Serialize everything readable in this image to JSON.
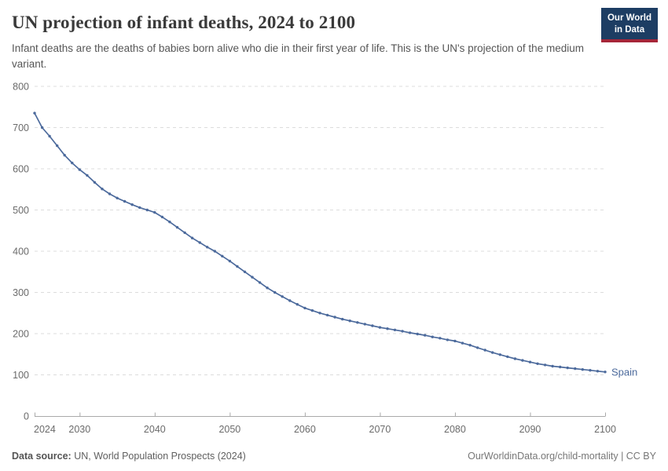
{
  "header": {
    "title": "UN projection of infant deaths, 2024 to 2100",
    "subtitle": "Infant deaths are the deaths of babies born alive who die in their first year of life. This is the UN's projection of the medium variant.",
    "logo": {
      "line1": "Our World",
      "line2": "in Data"
    }
  },
  "footer": {
    "source_label": "Data source:",
    "source_text": " UN, World Population Prospects (2024)",
    "credit": "OurWorldinData.org/child-mortality | CC BY"
  },
  "colors": {
    "series": "#4C6A9C",
    "grid": "#dcdcdc",
    "axis": "#a9a9a9",
    "logo_bg": "#1d3d63",
    "logo_stripe": "#a52639"
  },
  "chart_data": {
    "type": "line",
    "title": "UN projection of infant deaths, 2024 to 2100",
    "xlabel": "",
    "ylabel": "",
    "xlim": [
      2024,
      2100
    ],
    "ylim": [
      0,
      800
    ],
    "x_ticks": [
      2024,
      2030,
      2040,
      2050,
      2060,
      2070,
      2080,
      2090,
      2100
    ],
    "y_ticks": [
      0,
      100,
      200,
      300,
      400,
      500,
      600,
      700,
      800
    ],
    "grid": "horizontal-dashed",
    "legend_position": "end-of-line-label",
    "series": [
      {
        "name": "Spain",
        "color": "#4C6A9C",
        "x": [
          2024,
          2025,
          2026,
          2027,
          2028,
          2029,
          2030,
          2031,
          2032,
          2033,
          2034,
          2035,
          2036,
          2037,
          2038,
          2039,
          2040,
          2041,
          2042,
          2043,
          2044,
          2045,
          2046,
          2047,
          2048,
          2049,
          2050,
          2051,
          2052,
          2053,
          2054,
          2055,
          2056,
          2057,
          2058,
          2059,
          2060,
          2061,
          2062,
          2063,
          2064,
          2065,
          2066,
          2067,
          2068,
          2069,
          2070,
          2071,
          2072,
          2073,
          2074,
          2075,
          2076,
          2077,
          2078,
          2079,
          2080,
          2081,
          2082,
          2083,
          2084,
          2085,
          2086,
          2087,
          2088,
          2089,
          2090,
          2091,
          2092,
          2093,
          2094,
          2095,
          2096,
          2097,
          2098,
          2099,
          2100
        ],
        "values": [
          735,
          700,
          679,
          656,
          633,
          614,
          598,
          584,
          567,
          551,
          539,
          529,
          521,
          513,
          506,
          500,
          494,
          483,
          471,
          458,
          445,
          432,
          421,
          410,
          400,
          388,
          376,
          363,
          350,
          337,
          324,
          311,
          300,
          290,
          280,
          271,
          262,
          256,
          250,
          245,
          240,
          235,
          231,
          227,
          223,
          219,
          215,
          212,
          209,
          206,
          202,
          199,
          196,
          192,
          189,
          185,
          182,
          177,
          172,
          166,
          160,
          154,
          149,
          144,
          139,
          135,
          131,
          127,
          124,
          121,
          119,
          117,
          115,
          113,
          111,
          109,
          107
        ]
      }
    ]
  }
}
